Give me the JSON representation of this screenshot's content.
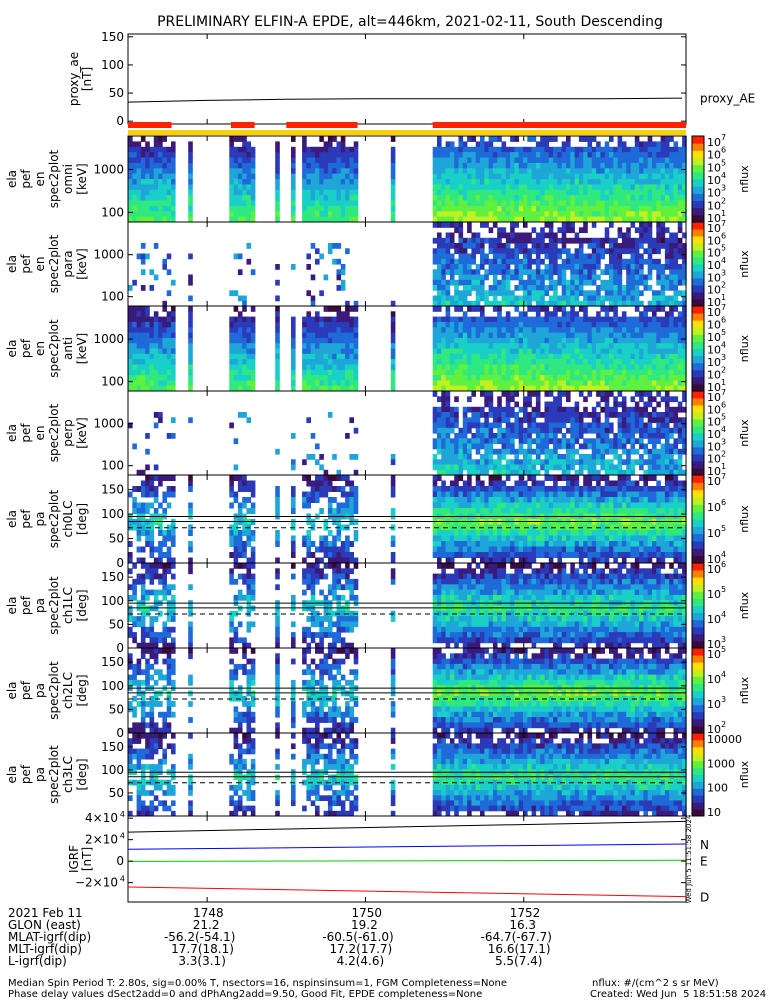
{
  "title": "PRELIMINARY ELFIN-A EPDE, alt=446km, 2021-02-11, South Descending",
  "colors": {
    "spectrogram": [
      "#3a0a3a",
      "#3a1a7a",
      "#2a3ab8",
      "#1e6ad8",
      "#1ea6d8",
      "#18d0c8",
      "#30e880",
      "#60f040",
      "#c0f020",
      "#ffe000",
      "#ff8000",
      "#ff2000"
    ],
    "bar_red": "#ff2200",
    "bar_yellow": "#ffd000",
    "N": "#0000ff",
    "E": "#00cc00",
    "D": "#ff0000"
  },
  "chart_data": [
    {
      "id": "proxy_ae",
      "type": "line",
      "ylabel": [
        "proxy_ae",
        "[nT]"
      ],
      "ylim": [
        -5,
        155
      ],
      "yticks": [
        "150",
        "100",
        "50",
        "0"
      ],
      "ytick_values": [
        150,
        100,
        50,
        0
      ],
      "series": [
        {
          "name": "proxy_AE",
          "x": [
            1747.0,
            1748.0,
            1749.0,
            1750.0,
            1751.0,
            1752.0,
            1753.0,
            1754.0
          ],
          "values": [
            34,
            37,
            39,
            40,
            40,
            40,
            40,
            41
          ]
        }
      ]
    },
    {
      "id": "bars",
      "type": "bar",
      "red_segments": [
        [
          1747.0,
          1747.55
        ],
        [
          1748.3,
          1748.6
        ],
        [
          1749.0,
          1749.9
        ],
        [
          1750.85,
          1754.05
        ]
      ],
      "yellow_span": [
        1747.0,
        1754.05
      ]
    },
    {
      "id": "en_omni",
      "type": "heatmap",
      "ylabel": [
        "ela",
        "pef",
        "en",
        "spec2plot",
        "omni",
        "[keV]"
      ],
      "yticks": [
        "1000",
        "100"
      ],
      "ytick_values": [
        1000,
        100
      ],
      "ylim": [
        60,
        6000
      ],
      "log": true,
      "colorbar": {
        "label": "nflux",
        "ticks": [
          "10",
          "10",
          "10",
          "10",
          "10",
          "10",
          "10"
        ],
        "exps": [
          "7",
          "6",
          "5",
          "4",
          "3",
          "2",
          "1"
        ]
      }
    },
    {
      "id": "en_para",
      "type": "heatmap",
      "ylabel": [
        "ela",
        "pef",
        "en",
        "spec2plot",
        "para",
        "[keV]"
      ],
      "yticks": [
        "1000",
        "100"
      ],
      "ytick_values": [
        1000,
        100
      ],
      "ylim": [
        60,
        6000
      ],
      "log": true,
      "colorbar": {
        "label": "nflux",
        "ticks": [
          "10",
          "10",
          "10",
          "10",
          "10",
          "10",
          "10"
        ],
        "exps": [
          "7",
          "6",
          "5",
          "4",
          "3",
          "2",
          "1"
        ]
      }
    },
    {
      "id": "en_anti",
      "type": "heatmap",
      "ylabel": [
        "ela",
        "pef",
        "en",
        "spec2plot",
        "anti",
        "[keV]"
      ],
      "yticks": [
        "1000",
        "100"
      ],
      "ytick_values": [
        1000,
        100
      ],
      "ylim": [
        60,
        6000
      ],
      "log": true,
      "colorbar": {
        "label": "nflux",
        "ticks": [
          "10",
          "10",
          "10",
          "10",
          "10",
          "10",
          "10"
        ],
        "exps": [
          "7",
          "6",
          "5",
          "4",
          "3",
          "2",
          "1"
        ]
      }
    },
    {
      "id": "en_perp",
      "type": "heatmap",
      "ylabel": [
        "ela",
        "pef",
        "en",
        "spec2plot",
        "perp",
        "[keV]"
      ],
      "yticks": [
        "1000",
        "100"
      ],
      "ytick_values": [
        1000,
        100
      ],
      "ylim": [
        60,
        6000
      ],
      "log": true,
      "colorbar": {
        "label": "nflux",
        "ticks": [
          "10",
          "10",
          "10",
          "10",
          "10",
          "10",
          "10"
        ],
        "exps": [
          "7",
          "6",
          "5",
          "4",
          "3",
          "2",
          "1"
        ]
      }
    },
    {
      "id": "pa_ch0",
      "type": "heatmap",
      "ylabel": [
        "ela",
        "pef",
        "pa",
        "spec2plot",
        "ch0LC",
        "[deg]"
      ],
      "yticks": [
        "150",
        "100",
        "50",
        "0"
      ],
      "ytick_values": [
        150,
        100,
        50,
        0
      ],
      "ylim": [
        0,
        180
      ],
      "colorbar": {
        "label": "nflux",
        "ticks": [
          "10",
          "10",
          "10",
          "10"
        ],
        "exps": [
          "7",
          "6",
          "5",
          "4"
        ]
      }
    },
    {
      "id": "pa_ch1",
      "type": "heatmap",
      "ylabel": [
        "ela",
        "pef",
        "pa",
        "spec2plot",
        "ch1LC",
        "[deg]"
      ],
      "yticks": [
        "150",
        "100",
        "50",
        "0"
      ],
      "ytick_values": [
        150,
        100,
        50,
        0
      ],
      "ylim": [
        0,
        180
      ],
      "colorbar": {
        "label": "nflux",
        "ticks": [
          "10",
          "10",
          "10",
          "10"
        ],
        "exps": [
          "6",
          "5",
          "4",
          "3"
        ]
      }
    },
    {
      "id": "pa_ch2",
      "type": "heatmap",
      "ylabel": [
        "ela",
        "pef",
        "pa",
        "spec2plot",
        "ch2LC",
        "[deg]"
      ],
      "yticks": [
        "150",
        "100",
        "50",
        "0"
      ],
      "ytick_values": [
        150,
        100,
        50,
        0
      ],
      "ylim": [
        0,
        180
      ],
      "colorbar": {
        "label": "nflux",
        "ticks": [
          "10",
          "10",
          "10",
          "10"
        ],
        "exps": [
          "5",
          "4",
          "3",
          "2"
        ]
      }
    },
    {
      "id": "pa_ch3",
      "type": "heatmap",
      "ylabel": [
        "ela",
        "pef",
        "pa",
        "spec2plot",
        "ch3LC",
        "[deg]"
      ],
      "yticks": [
        "150",
        "100",
        "50"
      ],
      "ytick_values": [
        150,
        100,
        50
      ],
      "ylim": [
        0,
        180
      ],
      "colorbar": {
        "label": "nflux",
        "ticks": [
          "10000",
          "1000",
          "100",
          "10"
        ],
        "exps": [
          "",
          "",
          "",
          ""
        ]
      }
    },
    {
      "id": "igrf",
      "type": "line",
      "ylabel": [
        "IGRF",
        "[nT]"
      ],
      "ylim": [
        -38000,
        42000
      ],
      "yticks": [
        "4×10",
        "2×10",
        "0",
        "−2×10",
        "−4×10"
      ],
      "ytick_exps": [
        "4",
        "4",
        "",
        "4",
        "4"
      ],
      "ytick_values": [
        40000,
        20000,
        0,
        -20000,
        -40000
      ],
      "series": [
        {
          "name": "N",
          "x": [
            1747.0,
            1754.05
          ],
          "values": [
            11000,
            16000
          ]
        },
        {
          "name": "E",
          "x": [
            1747.0,
            1754.05
          ],
          "values": [
            -200,
            800
          ]
        },
        {
          "name": "D",
          "x": [
            1747.0,
            1754.05
          ],
          "values": [
            -24000,
            -33000
          ]
        },
        {
          "name": "",
          "x": [
            1747.0,
            1754.05
          ],
          "values": [
            27000,
            37000
          ]
        }
      ]
    }
  ],
  "time_axis": {
    "xlim": [
      1747.0,
      1754.05
    ],
    "ticks": [
      "1748",
      "1750",
      "1752"
    ],
    "tick_values": [
      1748,
      1750,
      1752
    ]
  },
  "ephemeris": {
    "rows": [
      {
        "label": "2021 Feb 11",
        "v1": "1748",
        "v2": "1750",
        "v3": "1752"
      },
      {
        "label": "GLON (east)",
        "v1": "21.2",
        "v2": "19.2",
        "v3": "16.3"
      },
      {
        "label": "MLAT-igrf(dip)",
        "v1": "-56.2(-54.1)",
        "v2": "-60.5(-61.0)",
        "v3": "-64.7(-67.7)"
      },
      {
        "label": "MLT-igrf(dip)",
        "v1": "17.7(18.1)",
        "v2": "17.2(17.7)",
        "v3": "16.6(17.1)"
      },
      {
        "label": "L-igrf(dip)",
        "v1": "3.3(3.1)",
        "v2": "4.2(4.6)",
        "v3": "5.5(7.4)"
      }
    ]
  },
  "footer": {
    "line1": "Median Spin Period T: 2.80s, sig=0.00% T, nsectors=16, nspinsinsum=1, FGM Completeness=None",
    "line2": "Phase delay values dSect2add=0 and dPhAng2add=9.50, Good Fit, EPDE completeness=None",
    "units": "nflux: #/(cm^2 s sr MeV)",
    "created": "Created: Wed Jun  5 18:51:58 2024",
    "stamp": "Wed Jun  5 11:51:58 2024"
  }
}
